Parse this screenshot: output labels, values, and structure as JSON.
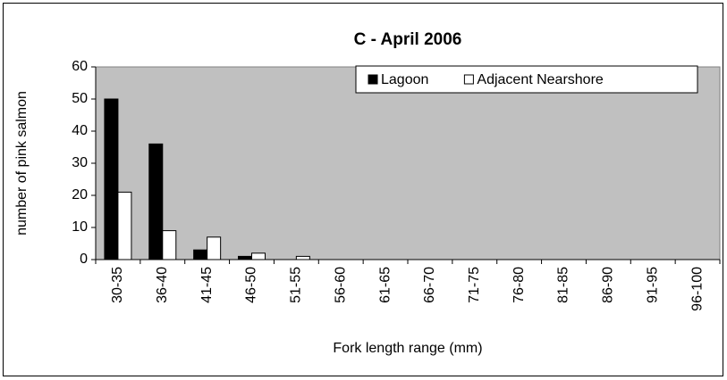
{
  "chart_data": {
    "type": "bar",
    "title": "C - April 2006",
    "x_label": "Fork length range (mm)",
    "y_label": "number of pink salmon",
    "categories": [
      "30-35",
      "36-40",
      "41-45",
      "46-50",
      "51-55",
      "56-60",
      "61-65",
      "66-70",
      "71-75",
      "76-80",
      "81-85",
      "86-90",
      "91-95",
      "96-100"
    ],
    "series": [
      {
        "name": "Lagoon",
        "color": "#000000",
        "values": [
          50,
          36,
          3,
          1,
          0,
          0,
          0,
          0,
          0,
          0,
          0,
          0,
          0,
          0
        ]
      },
      {
        "name": "Adjacent Nearshore",
        "color": "#ffffff",
        "values": [
          21,
          9,
          7,
          2,
          1,
          0,
          0,
          0,
          0,
          0,
          0,
          0,
          0,
          0
        ]
      }
    ],
    "ylim": [
      0,
      60
    ],
    "yticks": [
      0,
      10,
      20,
      30,
      40,
      50,
      60
    ],
    "plot_background": "#c0c0c0",
    "legend": "upper right"
  }
}
